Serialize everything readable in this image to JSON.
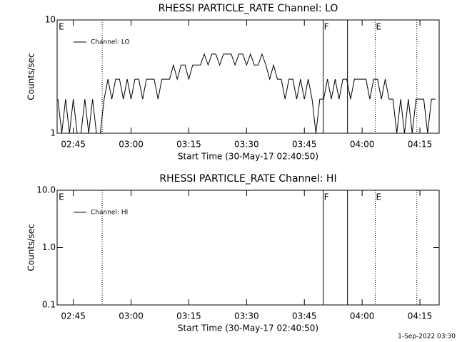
{
  "chart_data": [
    {
      "type": "line",
      "title": "RHESSI PARTICLE_RATE Channel: LO",
      "xlabel": "Start Time (30-May-17 02:40:50)",
      "ylabel": "Counts/sec",
      "ylog": true,
      "xlim": [
        160.8,
        260
      ],
      "ylim": [
        1,
        10
      ],
      "yticks": [
        1,
        10
      ],
      "xticks": [
        {
          "value": 165,
          "label": "02:45"
        },
        {
          "value": 180,
          "label": "03:00"
        },
        {
          "value": 195,
          "label": "03:15"
        },
        {
          "value": 210,
          "label": "03:30"
        },
        {
          "value": 225,
          "label": "03:45"
        },
        {
          "value": 240,
          "label": "04:00"
        },
        {
          "value": 255,
          "label": "04:15"
        }
      ],
      "x": [
        161,
        162,
        163,
        164,
        165,
        166,
        167,
        168,
        169,
        170,
        171,
        172,
        173,
        174,
        175,
        176,
        177,
        178,
        179,
        180,
        181,
        182,
        183,
        184,
        185,
        186,
        187,
        188,
        189,
        190,
        191,
        192,
        193,
        194,
        195,
        196,
        197,
        198,
        199,
        200,
        201,
        202,
        203,
        204,
        205,
        206,
        207,
        208,
        209,
        210,
        211,
        212,
        213,
        214,
        215,
        216,
        217,
        218,
        219,
        220,
        221,
        222,
        223,
        224,
        225,
        226,
        227,
        228,
        229,
        230,
        231,
        232,
        233,
        234,
        235,
        236,
        237,
        238,
        239,
        240,
        241,
        242,
        243,
        244,
        245,
        246,
        247,
        248,
        249,
        250,
        251,
        252,
        253,
        254,
        255,
        256,
        257,
        258,
        259
      ],
      "series": [
        {
          "name": "Channel: LO",
          "color": "#000000",
          "values": [
            2,
            1,
            2,
            1,
            2,
            1,
            1,
            2,
            1,
            2,
            1,
            1,
            2,
            3,
            2,
            3,
            3,
            2,
            3,
            2,
            3,
            3,
            2,
            3,
            3,
            3,
            2,
            3,
            3,
            3,
            4,
            3,
            4,
            4,
            3,
            4,
            4,
            4,
            5,
            4,
            5,
            5,
            4,
            5,
            5,
            5,
            4,
            5,
            5,
            4,
            5,
            4,
            4,
            5,
            4,
            3,
            4,
            3,
            3,
            2,
            3,
            3,
            2,
            3,
            2,
            3,
            2,
            1,
            2,
            2,
            3,
            2,
            3,
            2,
            3,
            3,
            2,
            3,
            3,
            3,
            3,
            2,
            3,
            3,
            2,
            3,
            2,
            2,
            1,
            2,
            1,
            2,
            1,
            2,
            2,
            2,
            1,
            2,
            2
          ]
        }
      ],
      "markers": [
        {
          "x": 161,
          "label": "E"
        },
        {
          "x": 172.5,
          "style": "dotted"
        },
        {
          "x": 229.9,
          "style": "solid",
          "label": "F"
        },
        {
          "x": 236.2,
          "style": "solid"
        },
        {
          "x": 243.4,
          "style": "dotted",
          "label": "E"
        },
        {
          "x": 254.2,
          "style": "dotted"
        }
      ]
    },
    {
      "type": "line",
      "title": "RHESSI PARTICLE_RATE Channel: HI",
      "xlabel": "Start Time (30-May-17 02:40:50)",
      "ylabel": "Counts/sec",
      "ylog": true,
      "xlim": [
        160.8,
        260
      ],
      "ylim": [
        0.1,
        10
      ],
      "yticks": [
        0.1,
        {
          "value": 1,
          "label": "1.0"
        },
        {
          "value": 10,
          "label": "10.0"
        }
      ],
      "xticks": [
        {
          "value": 165,
          "label": "02:45"
        },
        {
          "value": 180,
          "label": "03:00"
        },
        {
          "value": 195,
          "label": "03:15"
        },
        {
          "value": 210,
          "label": "03:30"
        },
        {
          "value": 225,
          "label": "03:45"
        },
        {
          "value": 240,
          "label": "04:00"
        },
        {
          "value": 255,
          "label": "04:15"
        }
      ],
      "series": [
        {
          "name": "Channel: HI",
          "color": "#000000"
        }
      ],
      "markers": [
        {
          "x": 161,
          "label": "E"
        },
        {
          "x": 172.5,
          "style": "dotted"
        },
        {
          "x": 229.9,
          "style": "solid",
          "label": "F"
        },
        {
          "x": 236.2,
          "style": "solid"
        },
        {
          "x": 243.4,
          "style": "dotted",
          "label": "E"
        },
        {
          "x": 254.2,
          "style": "dotted"
        }
      ]
    }
  ],
  "footer": "1-Sep-2022 03:30"
}
